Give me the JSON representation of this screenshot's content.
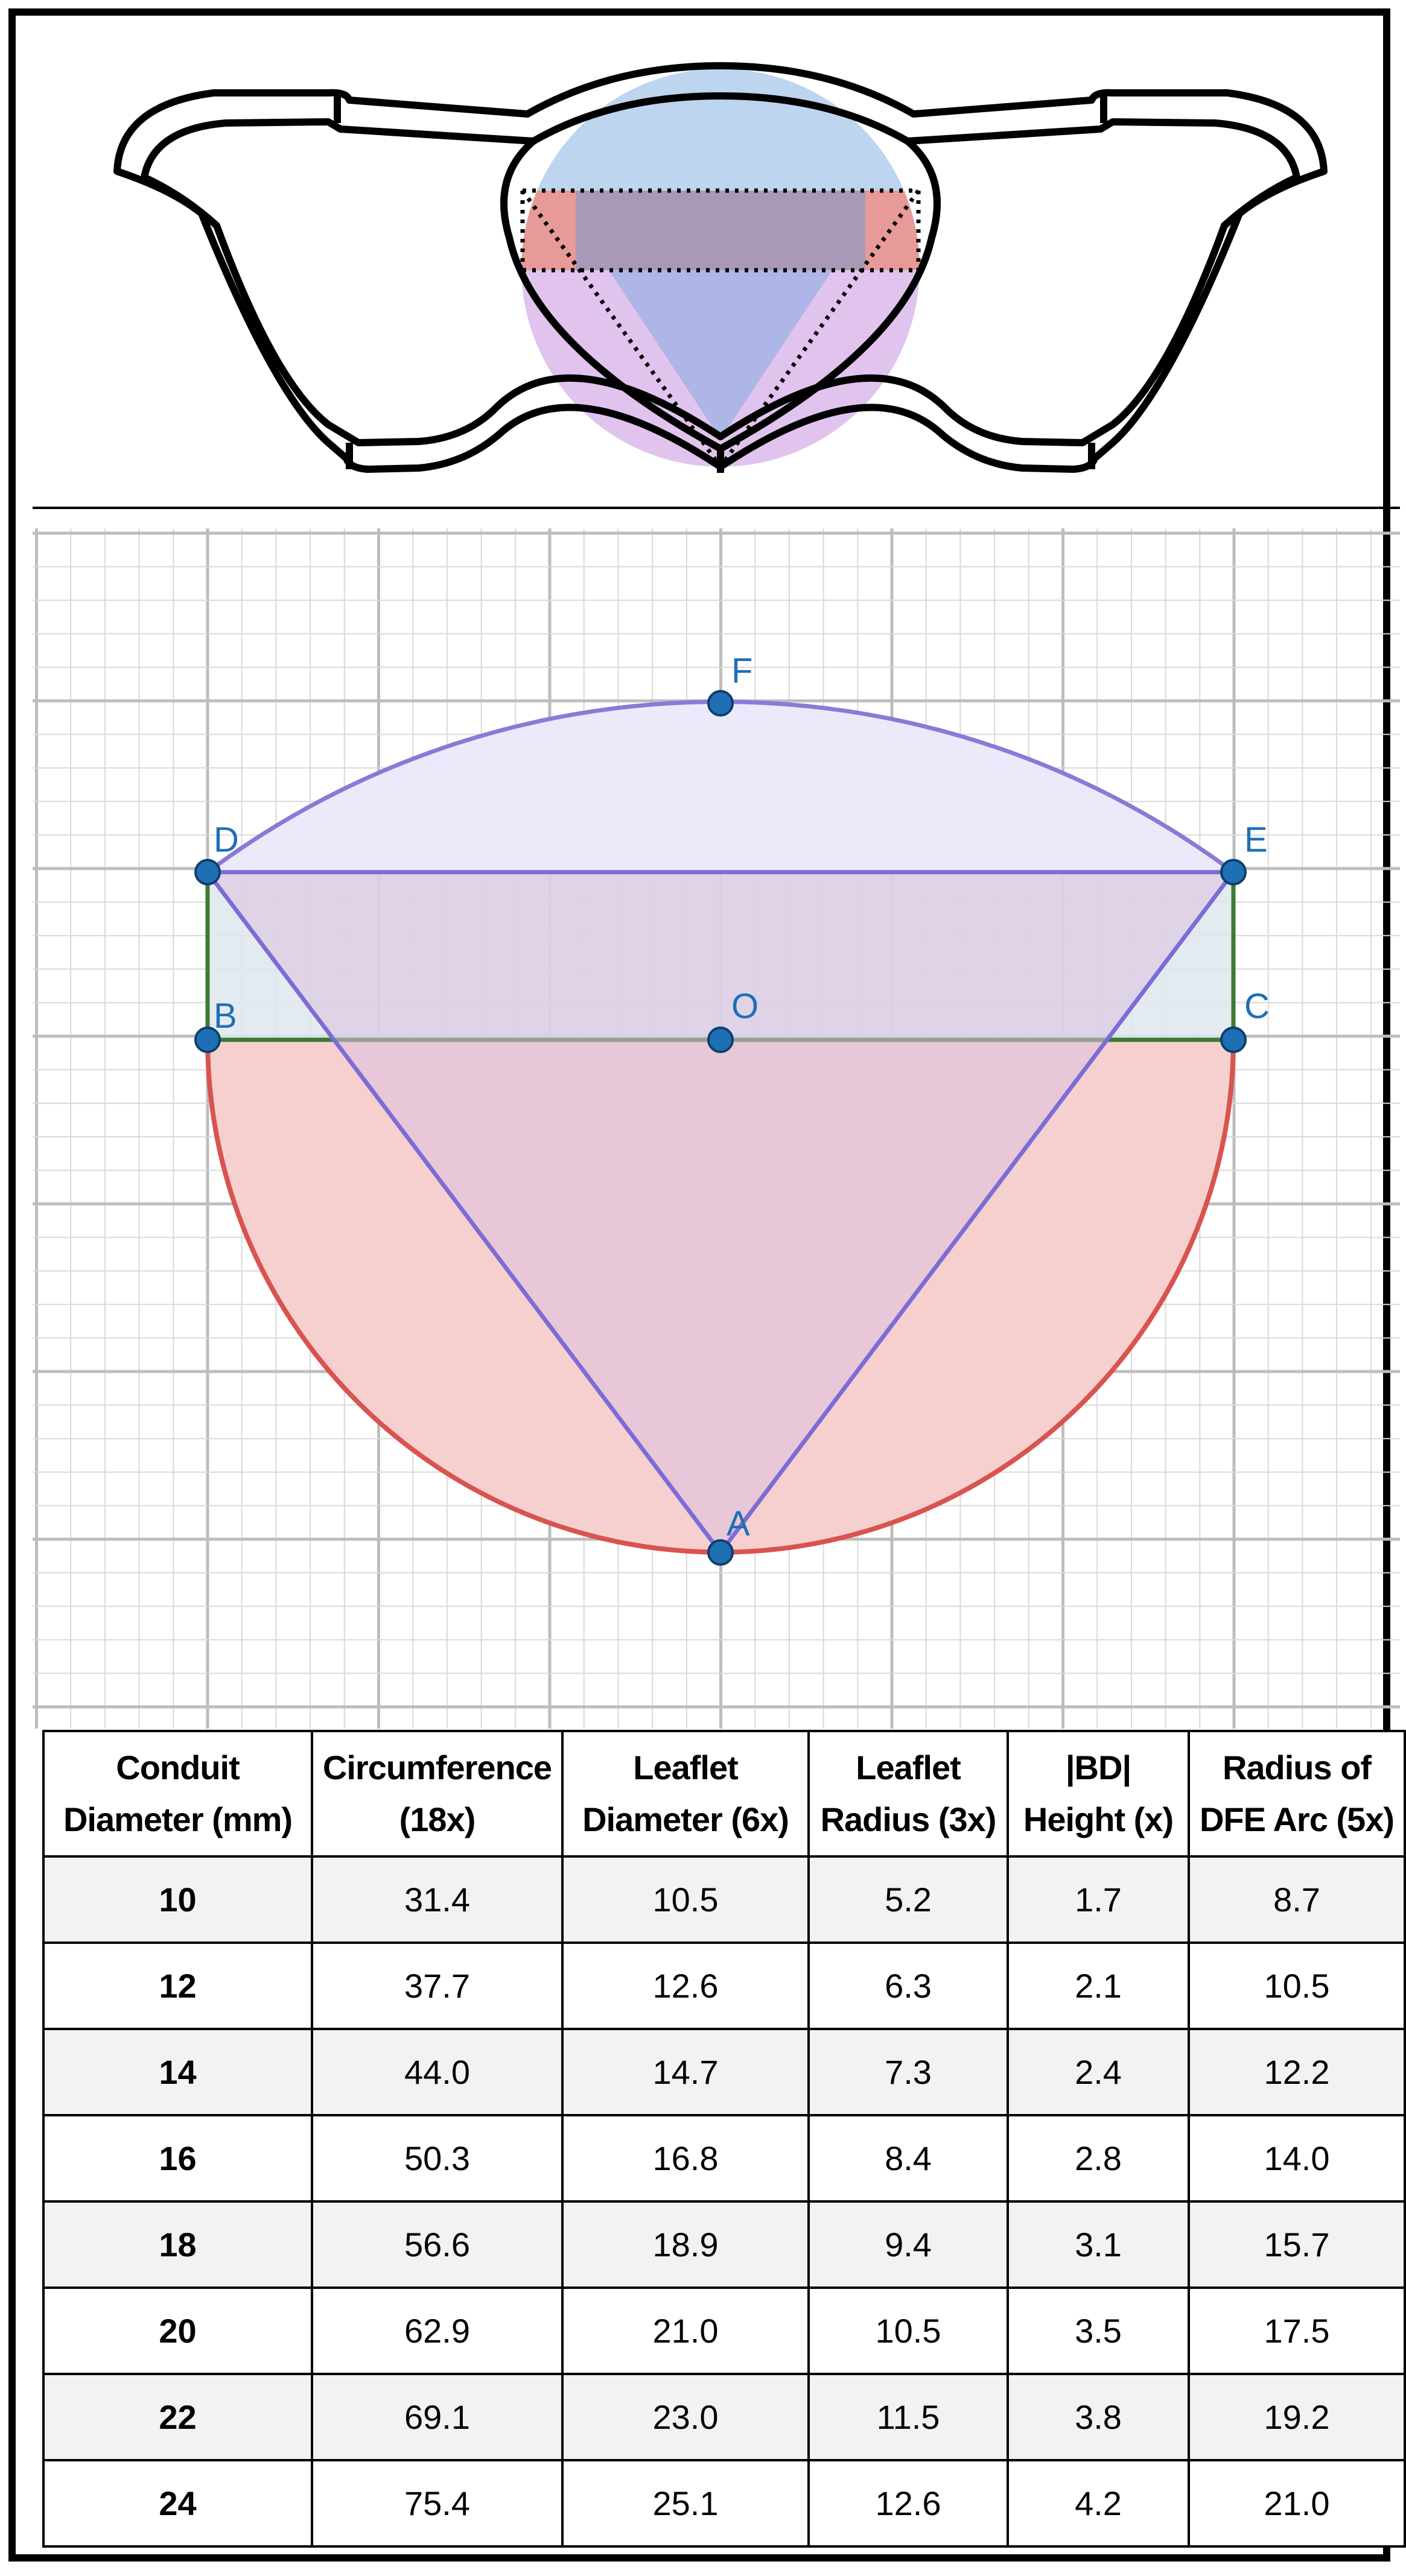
{
  "diagram": {
    "points": {
      "A": "A",
      "B": "B",
      "C": "C",
      "D": "D",
      "E": "E",
      "F": "F",
      "O": "O"
    },
    "colors": {
      "grid": "#d9d9d9",
      "grid_major": "#bdbdbd",
      "arc_DFE": "#8a7ad6",
      "fill_DFE": "#ece9fb",
      "semicircle_stroke": "#d9534f",
      "semicircle_fill": "#f6d0cf",
      "rectangle_stroke": "#3d7a33",
      "rectangle_fill": "#dfe7ed",
      "triangle_stroke": "#7b6cd6",
      "triangle_fill": "#dbbfe0",
      "point": "#1f6fb5"
    }
  },
  "illustration": {
    "colors": {
      "cap": "#bdd5ee",
      "band": "#a89ab6",
      "band_side": "#e79a97",
      "triangle": "#a9b4e6",
      "lower": "#e1c4ee",
      "outline": "#000000"
    }
  },
  "table": {
    "headers": [
      [
        "Conduit",
        "Diameter (mm)"
      ],
      [
        "Circumference",
        "(18x)"
      ],
      [
        "Leaflet",
        "Diameter (6x)"
      ],
      [
        "Leaflet",
        "Radius (3x)"
      ],
      [
        "|BD|",
        "Height (x)"
      ],
      [
        "Radius of",
        "DFE Arc (5x)"
      ]
    ],
    "rows": [
      [
        "10",
        "31.4",
        "10.5",
        "5.2",
        "1.7",
        "8.7"
      ],
      [
        "12",
        "37.7",
        "12.6",
        "6.3",
        "2.1",
        "10.5"
      ],
      [
        "14",
        "44.0",
        "14.7",
        "7.3",
        "2.4",
        "12.2"
      ],
      [
        "16",
        "50.3",
        "16.8",
        "8.4",
        "2.8",
        "14.0"
      ],
      [
        "18",
        "56.6",
        "18.9",
        "9.4",
        "3.1",
        "15.7"
      ],
      [
        "20",
        "62.9",
        "21.0",
        "10.5",
        "3.5",
        "17.5"
      ],
      [
        "22",
        "69.1",
        "23.0",
        "11.5",
        "3.8",
        "19.2"
      ],
      [
        "24",
        "75.4",
        "25.1",
        "12.6",
        "4.2",
        "21.0"
      ]
    ]
  }
}
